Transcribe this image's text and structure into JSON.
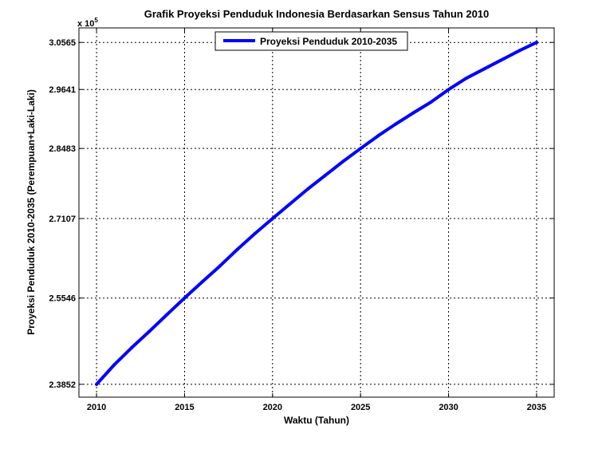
{
  "chart_data": {
    "type": "line",
    "title": "Grafik Proyeksi Penduduk Indonesia Berdasarkan Sensus Tahun 2010",
    "xlabel": "Waktu (Tahun)",
    "ylabel": "Proyeksi Penduduk 2010-2035 (Perempuan+Laki-Laki)",
    "y_multiplier": "x 10",
    "y_multiplier_exp": "5",
    "xlim": [
      2009,
      2036
    ],
    "ylim": [
      2.36,
      3.085
    ],
    "x_ticks": [
      "2010",
      "2015",
      "2020",
      "2025",
      "2030",
      "2035"
    ],
    "y_ticks": [
      "2.3852",
      "2.5546",
      "2.7107",
      "2.8483",
      "2.9641",
      "3.0565"
    ],
    "grid": true,
    "grid_style": "dotted",
    "legend_position": "top",
    "series": [
      {
        "name": "Proyeksi Penduduk 2010-2035",
        "color": "#0000ff",
        "x": [
          2010,
          2011,
          2012,
          2013,
          2014,
          2015,
          2016,
          2017,
          2018,
          2019,
          2020,
          2021,
          2022,
          2023,
          2024,
          2025,
          2026,
          2027,
          2028,
          2029,
          2030,
          2031,
          2032,
          2033,
          2034,
          2035
        ],
        "y": [
          2.3852,
          2.4232,
          2.4572,
          2.4892,
          2.5222,
          2.5546,
          2.5862,
          2.6172,
          2.6502,
          2.6812,
          2.7107,
          2.7397,
          2.7687,
          2.7957,
          2.8227,
          2.8483,
          2.8733,
          2.8963,
          2.9183,
          2.9393,
          2.9641,
          2.9861,
          3.0041,
          3.0221,
          3.0401,
          3.0565
        ]
      }
    ]
  }
}
